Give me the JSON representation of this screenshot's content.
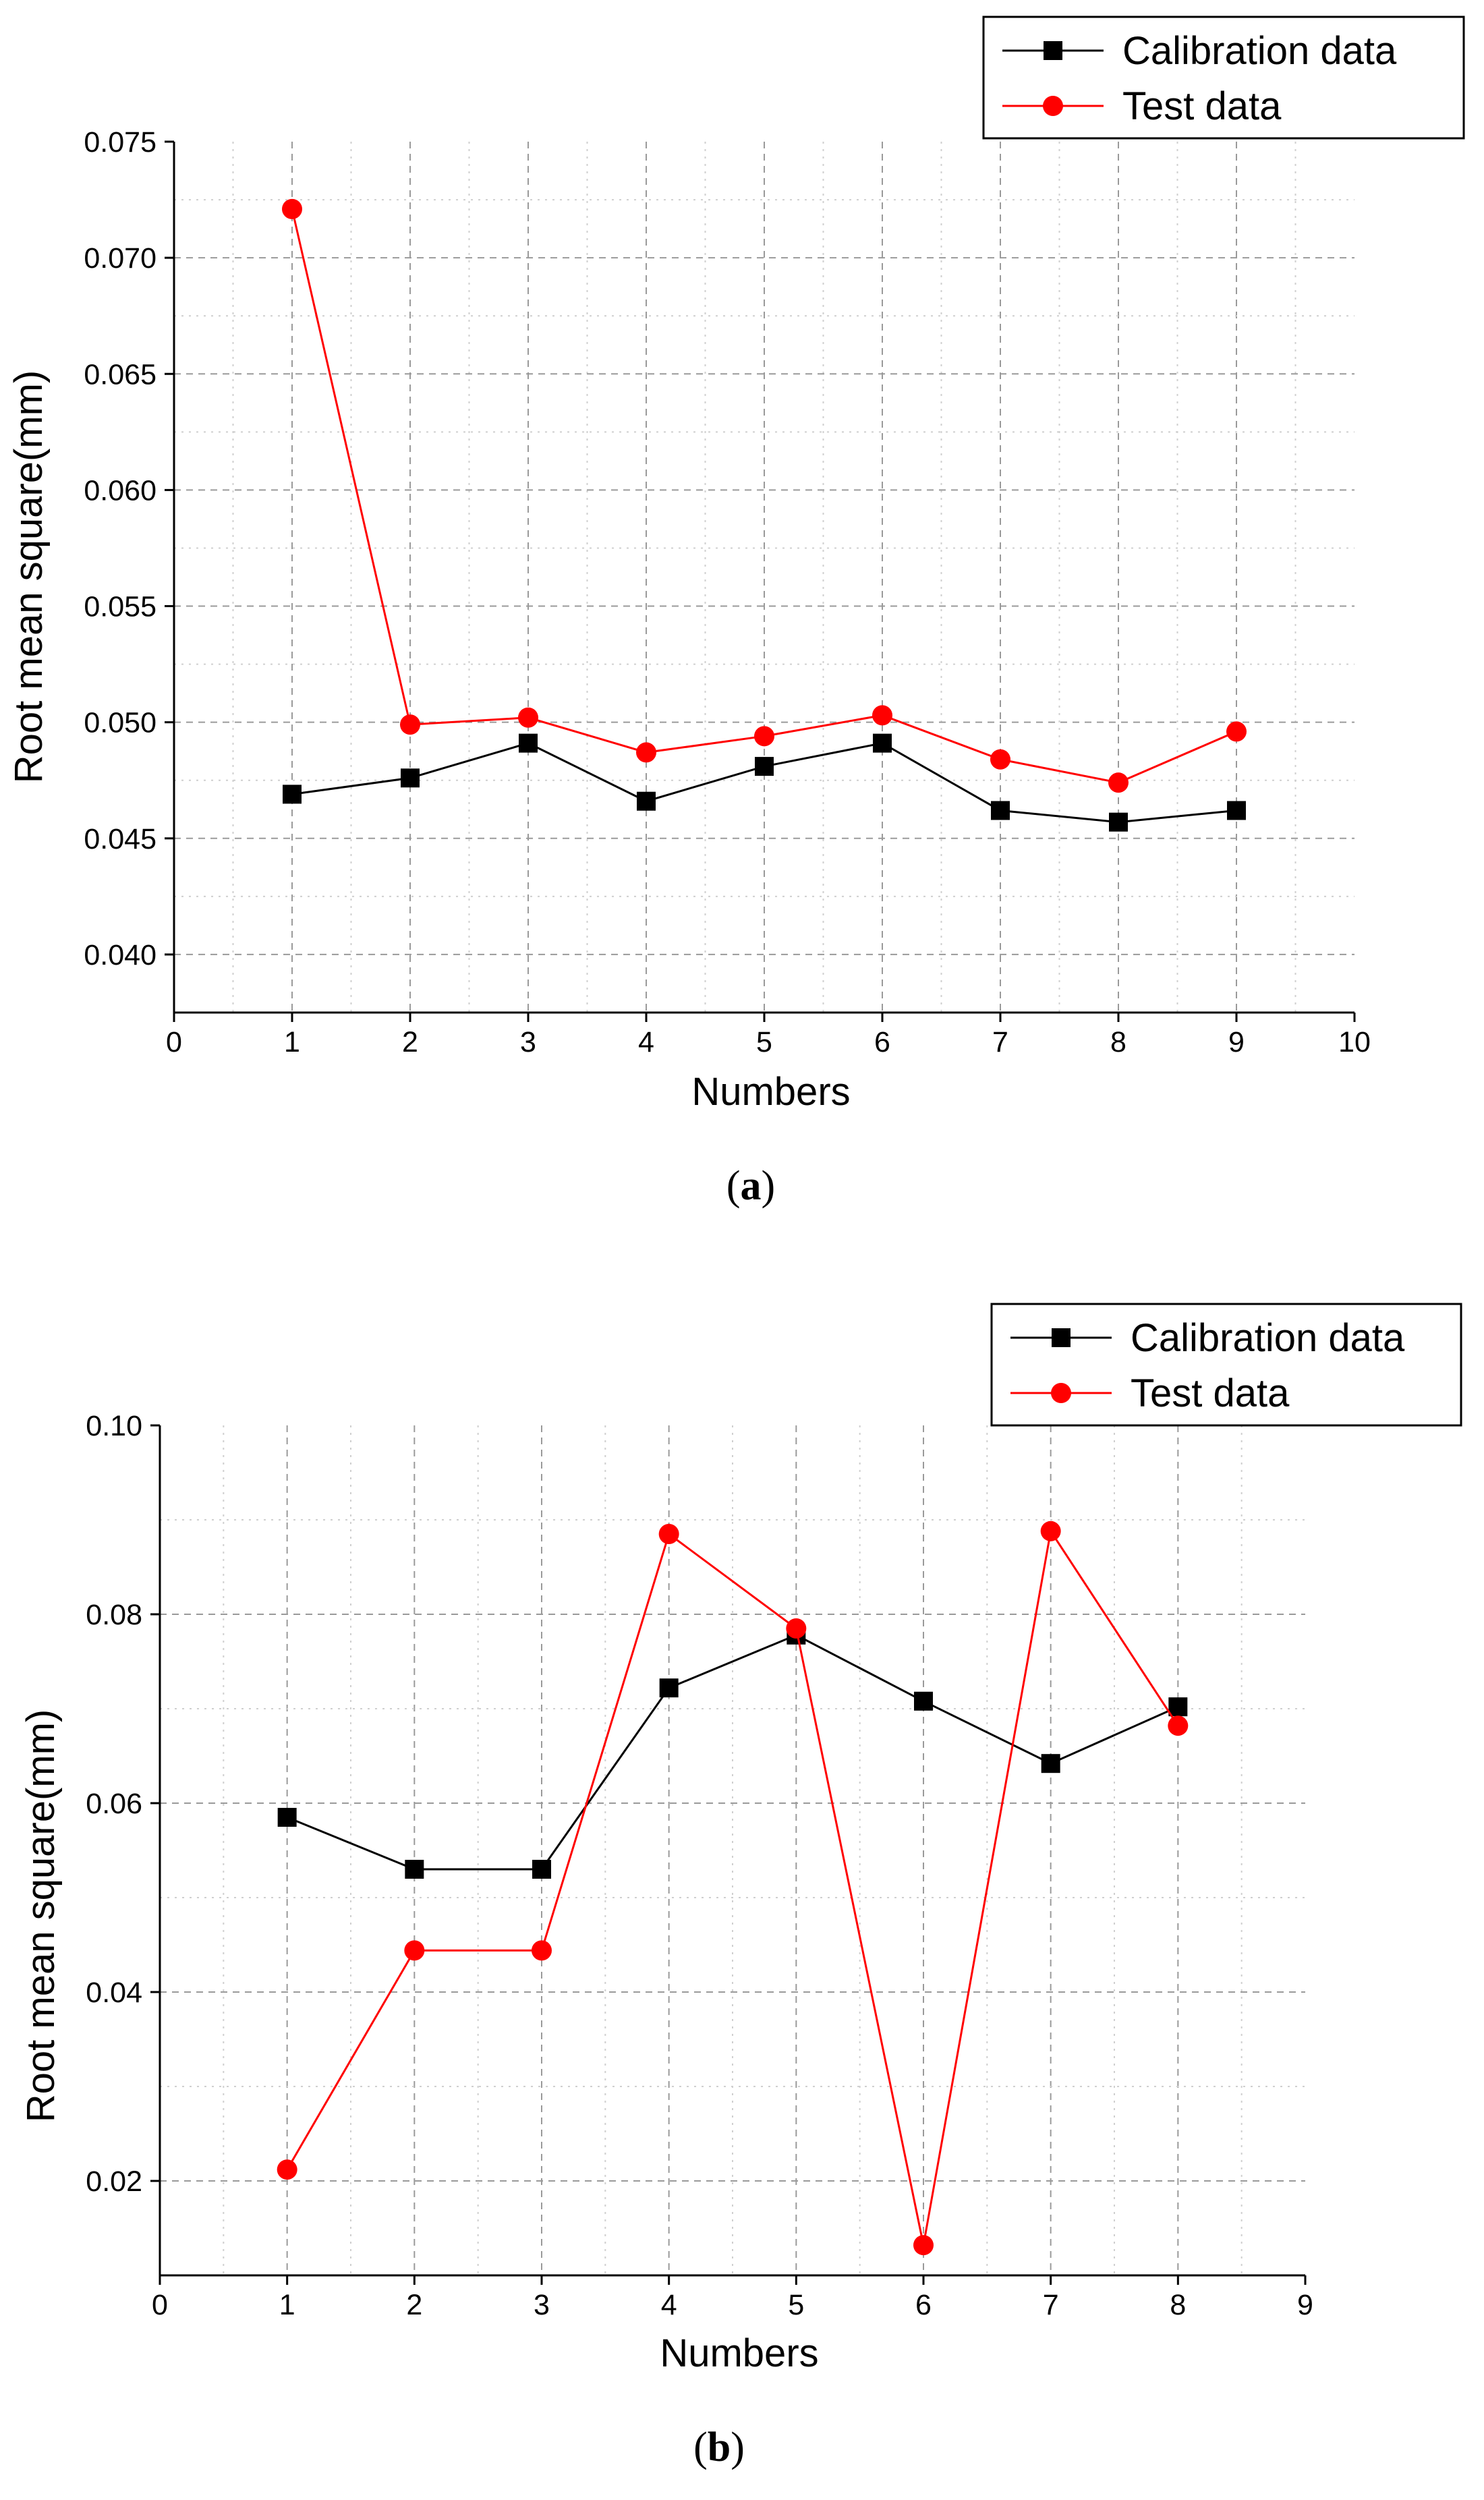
{
  "chart_data": [
    {
      "type": "line",
      "caption": "(a)",
      "caption_letter": "a",
      "xlabel": "Numbers",
      "ylabel": "Root mean square(mm)",
      "xlim": [
        0,
        10
      ],
      "ylim": [
        0.0375,
        0.075
      ],
      "xticks": [
        0,
        1,
        2,
        3,
        4,
        5,
        6,
        7,
        8,
        9,
        10
      ],
      "yticks": [
        0.04,
        0.045,
        0.05,
        0.055,
        0.06,
        0.065,
        0.07,
        0.075
      ],
      "ytick_labels": [
        "0.040",
        "0.045",
        "0.050",
        "0.055",
        "0.060",
        "0.065",
        "0.070",
        "0.075"
      ],
      "xtick_labels": [
        "0",
        "1",
        "2",
        "3",
        "4",
        "5",
        "6",
        "7",
        "8",
        "9",
        "10"
      ],
      "grid": true,
      "legend_position": "top-right",
      "x": [
        1,
        2,
        3,
        4,
        5,
        6,
        7,
        8,
        9
      ],
      "series": [
        {
          "name": "Calibration data",
          "color": "#000000",
          "marker": "square",
          "values": [
            0.0469,
            0.0476,
            0.0491,
            0.0466,
            0.0481,
            0.0491,
            0.0462,
            0.0457,
            0.0462
          ]
        },
        {
          "name": "Test data",
          "color": "#ff0000",
          "marker": "circle",
          "values": [
            0.0721,
            0.0499,
            0.0502,
            0.0487,
            0.0494,
            0.0503,
            0.0484,
            0.0474,
            0.0496
          ]
        }
      ]
    },
    {
      "type": "line",
      "caption": "(b)",
      "caption_letter": "b",
      "xlabel": "Numbers",
      "ylabel": "Root mean square(mm)",
      "xlim": [
        0,
        9
      ],
      "ylim": [
        0.01,
        0.1
      ],
      "xticks": [
        0,
        1,
        2,
        3,
        4,
        5,
        6,
        7,
        8,
        9
      ],
      "yticks": [
        0.02,
        0.04,
        0.06,
        0.08,
        0.1
      ],
      "ytick_labels": [
        "0.02",
        "0.04",
        "0.06",
        "0.08",
        "0.10"
      ],
      "xtick_labels": [
        "0",
        "1",
        "2",
        "3",
        "4",
        "5",
        "6",
        "7",
        "8",
        "9"
      ],
      "grid": true,
      "legend_position": "top-right",
      "x": [
        1,
        2,
        3,
        4,
        5,
        6,
        7,
        8
      ],
      "series": [
        {
          "name": "Calibration data",
          "color": "#000000",
          "marker": "square",
          "values": [
            0.0585,
            0.053,
            0.053,
            0.0722,
            0.0778,
            0.0708,
            0.0642,
            0.0702
          ]
        },
        {
          "name": "Test data",
          "color": "#ff0000",
          "marker": "circle",
          "values": [
            0.0212,
            0.0444,
            0.0444,
            0.0885,
            0.0785,
            0.0132,
            0.0888,
            0.0682
          ]
        }
      ]
    }
  ]
}
